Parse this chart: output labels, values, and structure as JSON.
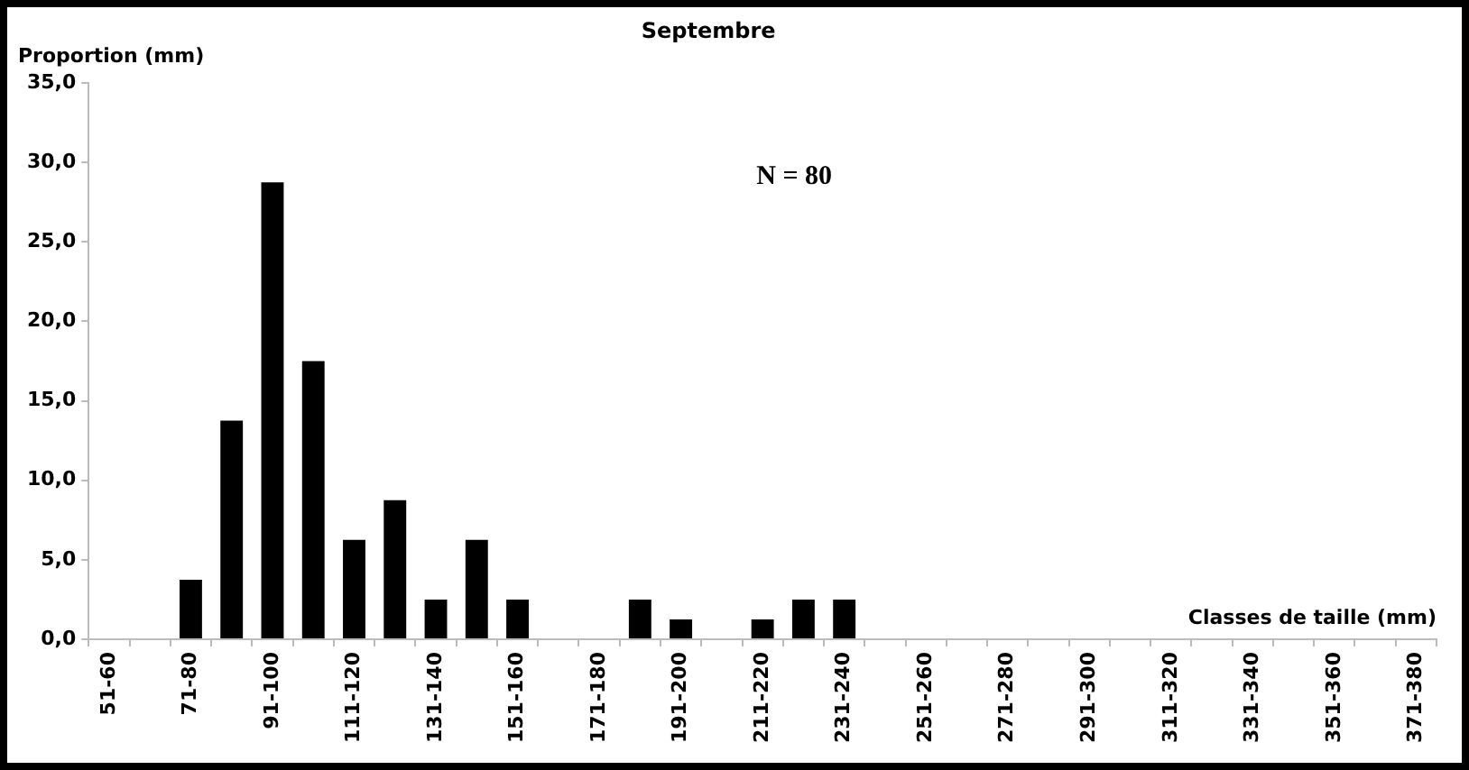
{
  "chart_data": {
    "type": "bar",
    "title": "Septembre",
    "ylabel": "Proportion (mm)",
    "xlabel": "Classes de taille (mm)",
    "annotations": [
      "N = 80"
    ],
    "categories": [
      "51-60",
      null,
      "71-80",
      null,
      "91-100",
      null,
      "111-120",
      null,
      "131-140",
      null,
      "151-160",
      null,
      "171-180",
      null,
      "191-200",
      null,
      "211-220",
      null,
      "231-240",
      null,
      "251-260",
      null,
      "271-280",
      null,
      "291-300",
      null,
      "311-320",
      null,
      "331-340",
      null,
      "351-360",
      null,
      "371-380"
    ],
    "values": [
      0,
      0,
      3.75,
      13.75,
      28.75,
      17.5,
      6.25,
      8.75,
      2.5,
      6.25,
      2.5,
      0,
      0,
      2.5,
      1.25,
      0,
      1.25,
      2.5,
      2.5,
      0,
      0,
      0,
      0,
      0,
      0,
      0,
      0,
      0,
      0,
      0,
      0,
      0,
      0
    ],
    "color": "#000000",
    "ylim": [
      0,
      35
    ],
    "yticks": [
      {
        "value": 0,
        "label": "0,0"
      },
      {
        "value": 5,
        "label": "5,0"
      },
      {
        "value": 10,
        "label": "10,0"
      },
      {
        "value": 15,
        "label": "15,0"
      },
      {
        "value": 20,
        "label": "20,0"
      },
      {
        "value": 25,
        "label": "25,0"
      },
      {
        "value": 30,
        "label": "30,0"
      },
      {
        "value": 35,
        "label": "35,0"
      }
    ],
    "grid": false,
    "legend": false
  }
}
